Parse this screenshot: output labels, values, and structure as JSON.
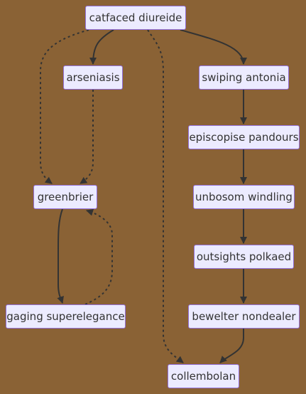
{
  "diagram": {
    "type": "flowchart",
    "colors": {
      "background": "#8a6235",
      "node_fill": "#ecebff",
      "node_border": "#9370db",
      "edge": "#333333",
      "text": "#333333"
    },
    "nodes": [
      {
        "id": "catfaced",
        "label": "catfaced diureide"
      },
      {
        "id": "arseniasis",
        "label": "arseniasis"
      },
      {
        "id": "swiping",
        "label": "swiping antonia"
      },
      {
        "id": "episcopise",
        "label": "episcopise pandours"
      },
      {
        "id": "greenbrier",
        "label": "greenbrier"
      },
      {
        "id": "unbosom",
        "label": "unbosom windling"
      },
      {
        "id": "outsights",
        "label": "outsights polkaed"
      },
      {
        "id": "gaging",
        "label": "gaging superelegance"
      },
      {
        "id": "bewelter",
        "label": "bewelter nondealer"
      },
      {
        "id": "collembolan",
        "label": "collembolan"
      }
    ],
    "edges": [
      {
        "from": "catfaced",
        "to": "arseniasis",
        "style": "solid"
      },
      {
        "from": "catfaced",
        "to": "swiping",
        "style": "solid"
      },
      {
        "from": "catfaced",
        "to": "greenbrier",
        "style": "dotted"
      },
      {
        "from": "catfaced",
        "to": "collembolan",
        "style": "dotted"
      },
      {
        "from": "arseniasis",
        "to": "greenbrier",
        "style": "dotted"
      },
      {
        "from": "swiping",
        "to": "episcopise",
        "style": "solid"
      },
      {
        "from": "episcopise",
        "to": "unbosom",
        "style": "solid"
      },
      {
        "from": "unbosom",
        "to": "outsights",
        "style": "solid"
      },
      {
        "from": "outsights",
        "to": "bewelter",
        "style": "solid"
      },
      {
        "from": "bewelter",
        "to": "collembolan",
        "style": "solid"
      },
      {
        "from": "greenbrier",
        "to": "gaging",
        "style": "solid"
      },
      {
        "from": "gaging",
        "to": "greenbrier",
        "style": "dotted"
      }
    ]
  }
}
